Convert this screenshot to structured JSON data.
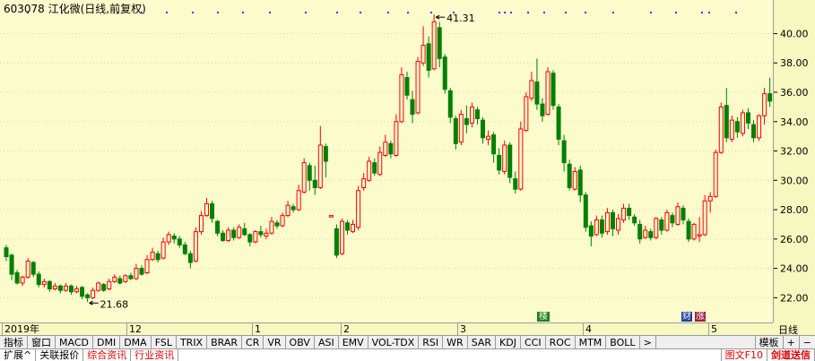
{
  "window": {
    "title": "603078 江化微(日线,前复权)"
  },
  "chart_data": {
    "type": "candlestick",
    "ylim": [
      20.8,
      41.8
    ],
    "yticks": [
      "22.00",
      "24.00",
      "26.00",
      "28.00",
      "30.00",
      "32.00",
      "34.00",
      "36.00",
      "38.00",
      "40.00"
    ],
    "ytick_values": [
      22,
      24,
      26,
      28,
      30,
      32,
      34,
      36,
      38,
      40
    ],
    "max_label": "41.31",
    "min_label": "21.68",
    "xlabels": [
      "2019年",
      "12",
      "1",
      "2",
      "3",
      "4",
      "5"
    ],
    "period": "日线",
    "colors": {
      "up": "#ff0000",
      "down": "#008000"
    },
    "candles": [
      [
        25.4,
        24.8,
        25.6,
        24.5
      ],
      [
        24.9,
        23.6,
        25.0,
        23.2
      ],
      [
        23.7,
        23.0,
        23.9,
        22.9
      ],
      [
        23.0,
        23.4,
        23.5,
        22.8
      ],
      [
        23.4,
        24.5,
        24.7,
        23.3
      ],
      [
        24.4,
        23.6,
        24.5,
        23.4
      ],
      [
        23.6,
        22.9,
        23.8,
        22.7
      ],
      [
        22.9,
        23.1,
        23.3,
        22.7
      ],
      [
        23.1,
        22.6,
        23.2,
        22.4
      ],
      [
        22.6,
        22.8,
        23.0,
        22.5
      ],
      [
        22.8,
        22.5,
        22.9,
        22.3
      ],
      [
        22.5,
        22.8,
        23.0,
        22.4
      ],
      [
        22.8,
        22.4,
        22.9,
        22.2
      ],
      [
        22.4,
        22.6,
        22.8,
        22.3
      ],
      [
        22.7,
        22.1,
        22.8,
        21.9
      ],
      [
        22.2,
        22.0,
        22.3,
        21.7
      ],
      [
        22.0,
        22.5,
        22.7,
        21.9
      ],
      [
        22.5,
        23.0,
        23.1,
        22.4
      ],
      [
        22.9,
        22.5,
        23.0,
        22.4
      ],
      [
        22.6,
        23.1,
        23.3,
        22.5
      ],
      [
        23.1,
        23.4,
        23.6,
        23.0
      ],
      [
        23.3,
        23.0,
        23.5,
        22.9
      ],
      [
        23.1,
        23.5,
        23.6,
        23.0
      ],
      [
        23.5,
        23.3,
        23.7,
        23.2
      ],
      [
        23.3,
        24.0,
        24.3,
        23.2
      ],
      [
        24.0,
        23.6,
        24.2,
        23.5
      ],
      [
        23.7,
        24.6,
        24.9,
        23.6
      ],
      [
        24.6,
        25.1,
        25.4,
        24.5
      ],
      [
        25.0,
        24.6,
        25.2,
        24.4
      ],
      [
        24.7,
        25.8,
        26.1,
        24.6
      ],
      [
        25.8,
        26.3,
        26.5,
        25.6
      ],
      [
        26.2,
        26.0,
        26.4,
        25.7
      ],
      [
        26.0,
        25.6,
        26.2,
        25.4
      ],
      [
        25.6,
        25.0,
        25.8,
        24.9
      ],
      [
        25.0,
        24.4,
        25.2,
        24.0
      ],
      [
        24.5,
        26.5,
        26.8,
        24.4
      ],
      [
        26.5,
        27.6,
        27.9,
        26.3
      ],
      [
        27.6,
        28.4,
        28.8,
        27.5
      ],
      [
        28.4,
        27.4,
        28.6,
        27.1
      ],
      [
        27.2,
        26.4,
        27.3,
        26.2
      ],
      [
        26.4,
        25.9,
        26.6,
        25.8
      ],
      [
        25.9,
        26.6,
        26.8,
        25.8
      ],
      [
        26.6,
        26.1,
        26.8,
        25.9
      ],
      [
        26.1,
        26.8,
        27.0,
        26.0
      ],
      [
        26.7,
        26.3,
        27.1,
        26.2
      ],
      [
        26.3,
        25.8,
        26.4,
        25.5
      ],
      [
        25.8,
        26.5,
        26.6,
        25.7
      ],
      [
        26.5,
        26.3,
        26.9,
        26.1
      ],
      [
        26.2,
        26.4,
        26.7,
        26.0
      ],
      [
        26.4,
        27.2,
        27.5,
        26.3
      ],
      [
        27.1,
        26.9,
        27.3,
        26.7
      ],
      [
        26.9,
        27.6,
        27.8,
        26.8
      ],
      [
        27.6,
        28.3,
        28.6,
        27.5
      ],
      [
        28.2,
        28.0,
        28.4,
        27.8
      ],
      [
        28.0,
        29.3,
        29.7,
        27.9
      ],
      [
        29.2,
        31.2,
        31.5,
        29.1
      ],
      [
        31.0,
        30.0,
        31.2,
        29.3
      ],
      [
        30.0,
        29.5,
        31.0,
        29.0
      ],
      [
        29.5,
        32.4,
        33.7,
        29.4
      ],
      [
        32.3,
        31.3,
        32.5,
        30.2
      ],
      [
        27.5,
        27.6,
        27.6,
        27.5
      ],
      [
        26.7,
        24.9,
        27.0,
        24.7
      ],
      [
        25.0,
        27.2,
        27.4,
        24.9
      ],
      [
        27.1,
        26.6,
        27.3,
        26.3
      ],
      [
        26.5,
        27.0,
        27.3,
        26.4
      ],
      [
        26.8,
        29.3,
        29.6,
        26.6
      ],
      [
        29.5,
        30.1,
        30.5,
        29.3
      ],
      [
        30.0,
        31.3,
        31.6,
        29.9
      ],
      [
        31.2,
        30.5,
        31.5,
        30.3
      ],
      [
        30.4,
        31.9,
        32.3,
        30.3
      ],
      [
        31.7,
        32.6,
        33.1,
        31.6
      ],
      [
        32.5,
        31.8,
        32.7,
        31.5
      ],
      [
        31.7,
        34.0,
        34.5,
        31.6
      ],
      [
        34.0,
        37.2,
        37.7,
        33.9
      ],
      [
        37.0,
        35.8,
        37.4,
        35.5
      ],
      [
        35.5,
        34.5,
        36.1,
        33.9
      ],
      [
        34.6,
        38.1,
        38.4,
        34.5
      ],
      [
        38.0,
        39.2,
        40.5,
        37.8
      ],
      [
        39.3,
        37.5,
        39.8,
        37.0
      ],
      [
        37.6,
        40.8,
        41.3,
        37.5
      ],
      [
        40.4,
        38.3,
        40.8,
        37.7
      ],
      [
        38.4,
        36.2,
        38.6,
        35.9
      ],
      [
        36.1,
        34.3,
        36.3,
        33.9
      ],
      [
        34.2,
        32.5,
        34.4,
        32.1
      ],
      [
        32.6,
        34.5,
        34.8,
        32.4
      ],
      [
        34.2,
        33.8,
        35.1,
        33.2
      ],
      [
        33.9,
        35.0,
        35.3,
        33.6
      ],
      [
        34.8,
        34.2,
        35.0,
        33.8
      ],
      [
        34.1,
        32.9,
        34.3,
        32.5
      ],
      [
        32.8,
        33.0,
        33.4,
        32.4
      ],
      [
        33.1,
        31.8,
        33.3,
        31.2
      ],
      [
        31.7,
        30.7,
        32.2,
        30.4
      ],
      [
        30.6,
        32.4,
        32.7,
        30.4
      ],
      [
        32.4,
        30.2,
        32.6,
        29.8
      ],
      [
        30.1,
        29.4,
        30.6,
        29.1
      ],
      [
        29.4,
        33.5,
        34.0,
        29.3
      ],
      [
        33.4,
        35.7,
        36.0,
        33.3
      ],
      [
        35.6,
        36.8,
        37.4,
        35.4
      ],
      [
        36.7,
        35.2,
        38.3,
        34.8
      ],
      [
        35.2,
        34.4,
        35.6,
        34.0
      ],
      [
        34.5,
        37.4,
        37.7,
        34.4
      ],
      [
        37.3,
        35.1,
        37.5,
        34.8
      ],
      [
        35.0,
        32.8,
        35.2,
        32.4
      ],
      [
        32.7,
        31.2,
        33.1,
        30.6
      ],
      [
        31.1,
        29.5,
        31.4,
        29.3
      ],
      [
        29.4,
        30.6,
        30.9,
        29.3
      ],
      [
        30.7,
        29.0,
        31.0,
        28.5
      ],
      [
        29.0,
        26.8,
        29.2,
        26.5
      ],
      [
        26.9,
        26.2,
        27.2,
        25.5
      ],
      [
        26.3,
        27.3,
        27.6,
        26.2
      ],
      [
        27.3,
        26.4,
        27.6,
        26.1
      ],
      [
        26.5,
        27.8,
        28.1,
        26.3
      ],
      [
        27.8,
        26.7,
        28.0,
        26.2
      ],
      [
        26.6,
        27.4,
        27.7,
        26.3
      ],
      [
        27.3,
        28.1,
        28.4,
        27.1
      ],
      [
        28.1,
        27.6,
        28.4,
        27.3
      ],
      [
        27.5,
        27.1,
        27.7,
        26.9
      ],
      [
        27.0,
        26.0,
        27.3,
        25.7
      ],
      [
        26.1,
        26.6,
        26.9,
        26.0
      ],
      [
        26.5,
        26.1,
        26.7,
        25.9
      ],
      [
        26.1,
        27.4,
        27.5,
        26.0
      ],
      [
        27.3,
        26.6,
        27.5,
        26.3
      ],
      [
        26.6,
        27.8,
        28.0,
        26.5
      ],
      [
        27.6,
        27.1,
        27.8,
        26.8
      ],
      [
        27.0,
        28.2,
        28.5,
        26.9
      ],
      [
        28.1,
        27.3,
        28.3,
        27.0
      ],
      [
        27.2,
        26.0,
        27.4,
        25.8
      ],
      [
        26.0,
        27.0,
        27.1,
        25.9
      ],
      [
        26.2,
        26.3,
        27.5,
        25.8
      ],
      [
        26.3,
        28.6,
        29.0,
        26.2
      ],
      [
        28.6,
        28.9,
        29.2,
        27.8
      ],
      [
        28.9,
        31.9,
        32.1,
        28.8
      ],
      [
        31.9,
        35.0,
        35.3,
        31.8
      ],
      [
        35.1,
        32.9,
        36.3,
        32.6
      ],
      [
        32.8,
        34.1,
        34.4,
        32.6
      ],
      [
        34.0,
        33.3,
        34.3,
        32.9
      ],
      [
        33.2,
        34.6,
        34.8,
        33.0
      ],
      [
        34.6,
        33.9,
        34.9,
        33.5
      ],
      [
        33.8,
        32.9,
        34.1,
        32.6
      ],
      [
        32.9,
        34.4,
        34.5,
        32.7
      ],
      [
        34.4,
        35.9,
        36.3,
        33.8
      ],
      [
        35.9,
        35.4,
        37.0,
        35.0
      ]
    ],
    "volume_dots_y": 14
  },
  "axis": {
    "labels": [
      "40.00",
      "38.00",
      "36.00",
      "34.00",
      "32.00",
      "30.00",
      "28.00",
      "26.00",
      "24.00",
      "22.00"
    ],
    "period_label": "日线"
  },
  "timeline": {
    "labels": [
      "2019年",
      "12",
      "1",
      "2",
      "3",
      "4",
      "5"
    ],
    "badge_cai": "财",
    "badge_zhang": "涨",
    "badge_lou": "楼"
  },
  "indicator_tabs": [
    "指标",
    "窗口",
    "MACD",
    "DMI",
    "DMA",
    "FSL",
    "TRIX",
    "BRAR",
    "CR",
    "VR",
    "OBV",
    "ASI",
    "EMV",
    "VOL-TDX",
    "RSI",
    "WR",
    "SAR",
    "KDJ",
    "CCI",
    "ROC",
    "MTM",
    "BOLL",
    ">"
  ],
  "indicator_right": {
    "template": "模板",
    "plus": "+",
    "minus": "−"
  },
  "bottom_tabs": [
    "扩展^",
    "关联报价",
    "综合资讯",
    "行业资讯"
  ],
  "bottom_right": {
    "f10": "图文F10",
    "notice": "剑道送信"
  }
}
